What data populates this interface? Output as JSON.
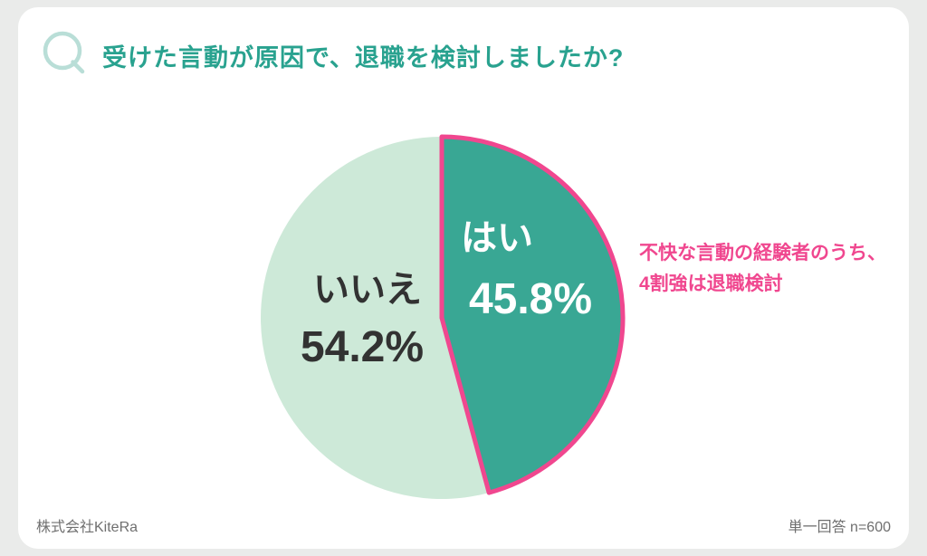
{
  "page": {
    "q_mark": "Q",
    "footer_left": "株式会社KiteRa",
    "footer_right": "単一回答  n=600"
  },
  "chart_data": {
    "type": "pie",
    "title": "受けた言動が原因で、退職を検討しましたか?",
    "unit": "%",
    "start_angle_deg": 0,
    "direction": "clockwise",
    "slices": [
      {
        "label": "はい",
        "value": 45.8,
        "display": "45.8%",
        "color": "#39a794",
        "text_color": "#ffffff",
        "outlined": true,
        "outline_color": "#f0478f"
      },
      {
        "label": "いいえ",
        "value": 54.2,
        "display": "54.2%",
        "color": "#cde9d8",
        "text_color": "#323232",
        "outlined": false,
        "outline_color": null
      }
    ],
    "annotation": {
      "lines": [
        "不快な言動の経験者のうち、",
        "4割強は退職検討"
      ],
      "color": "#f0478f"
    },
    "legend_position": "none",
    "accent_teal": "#29a28f",
    "q_icon_color": "#b9ded7",
    "sample_note": "単一回答  n=600",
    "source": "株式会社KiteRa"
  }
}
